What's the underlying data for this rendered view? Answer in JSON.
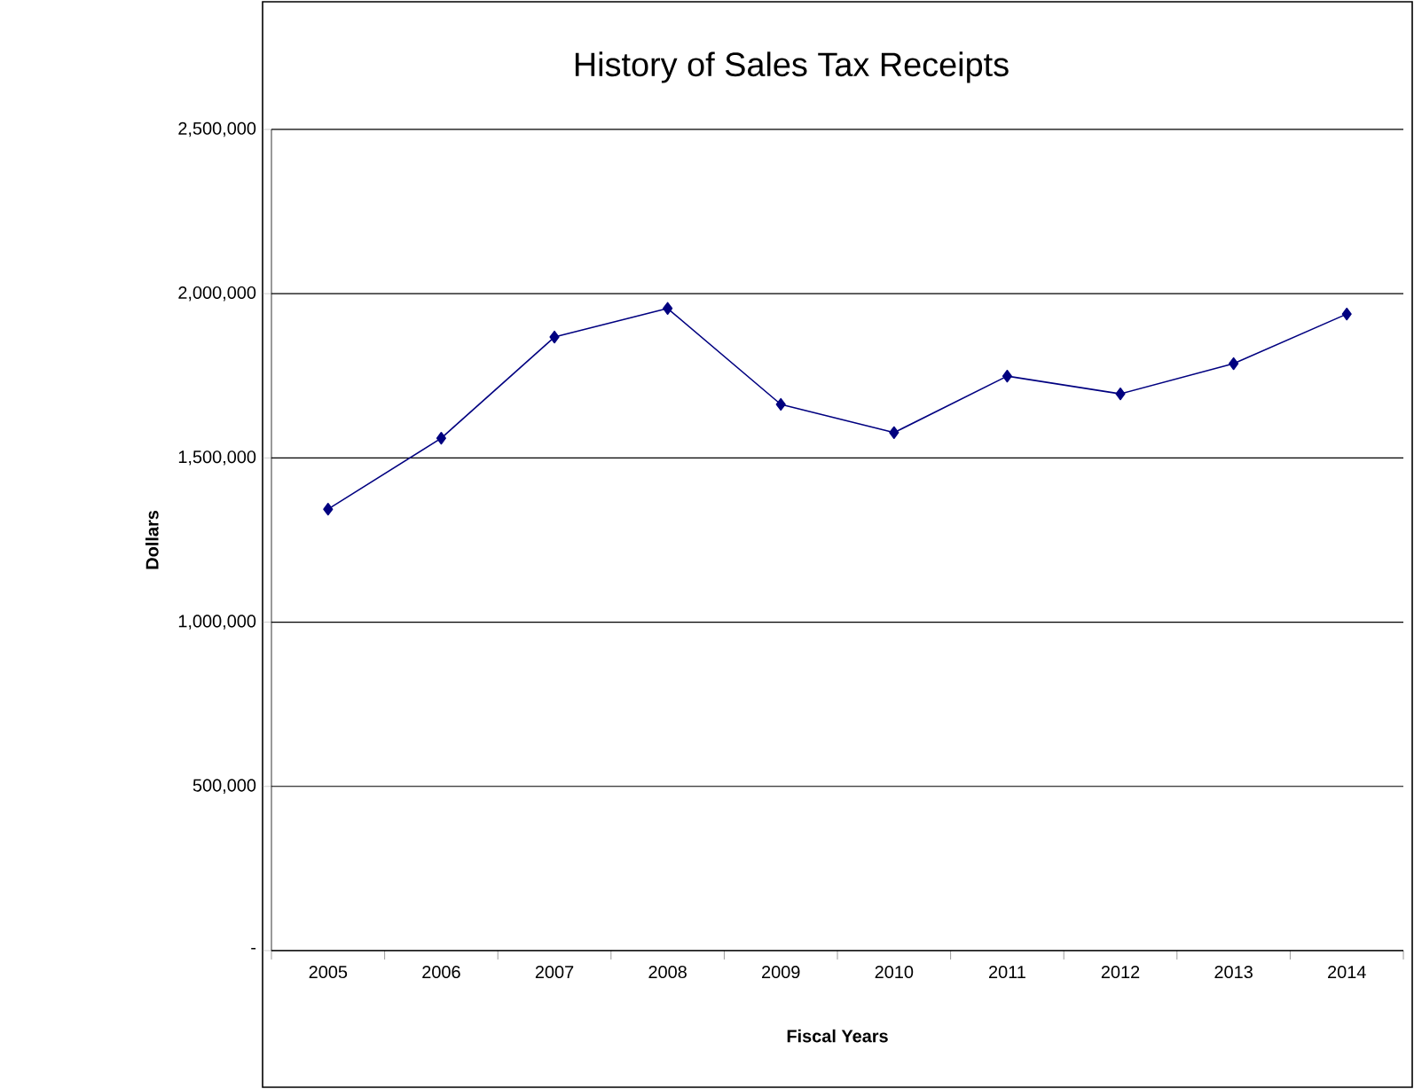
{
  "chart_data": {
    "type": "line",
    "title": "History of Sales Tax Receipts",
    "xlabel": "Fiscal Years",
    "ylabel": "Dollars",
    "categories": [
      "2005",
      "2006",
      "2007",
      "2008",
      "2009",
      "2010",
      "2011",
      "2012",
      "2013",
      "2014"
    ],
    "series": [
      {
        "color": "#000080",
        "values": [
          1344000,
          1560000,
          1868000,
          1955000,
          1663000,
          1577000,
          1749000,
          1695000,
          1787000,
          1938000
        ]
      }
    ],
    "ylim": [
      0,
      2500000
    ],
    "yticks": [
      {
        "value": 0,
        "label": "-"
      },
      {
        "value": 500000,
        "label": "500,000"
      },
      {
        "value": 1000000,
        "label": "1,000,000"
      },
      {
        "value": 1500000,
        "label": "1,500,000"
      },
      {
        "value": 2000000,
        "label": "2,000,000"
      },
      {
        "value": 2500000,
        "label": "2,500,000"
      }
    ],
    "grid": "y",
    "marker": "diamond",
    "line_style": "solid"
  }
}
